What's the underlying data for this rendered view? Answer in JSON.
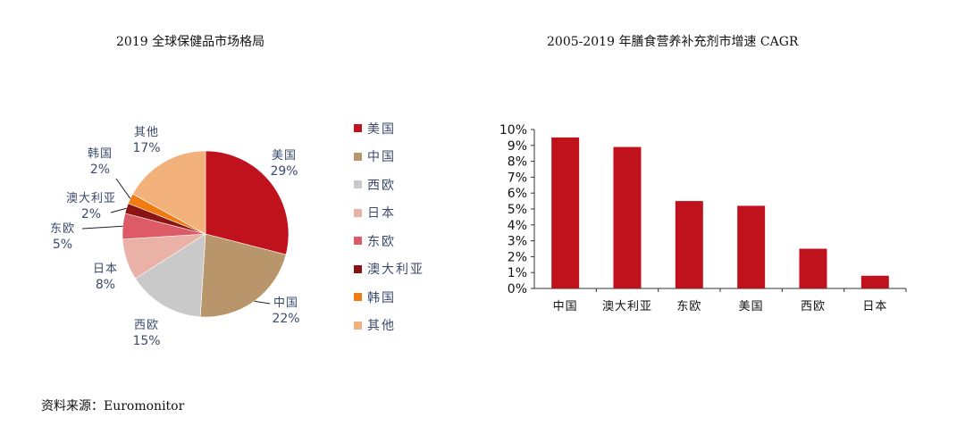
{
  "charts": {
    "pie_title": "2019 全球保健品市场格局",
    "bar_title": "2005-2019 年膳食营养补充剂市增速 CAGR"
  },
  "source_note": "资料来源：Euromonitor",
  "colors": {
    "red": "#c0121d",
    "tan": "#b8956a",
    "gray": "#c9c9c9",
    "pink": "#eab1a6",
    "rose": "#dc5b66",
    "darkred": "#8a1313",
    "orange": "#ef7b11",
    "peach": "#f2b07a",
    "label": "#3a4a6b"
  },
  "chart_data": [
    {
      "type": "pie",
      "title": "2019 全球保健品市场格局",
      "slices": [
        {
          "name": "美国",
          "value": 29,
          "label": "29%",
          "color": "#c0121d"
        },
        {
          "name": "中国",
          "value": 22,
          "label": "22%",
          "color": "#b8956a"
        },
        {
          "name": "西欧",
          "value": 15,
          "label": "15%",
          "color": "#c9c9c9"
        },
        {
          "name": "日本",
          "value": 8,
          "label": "8%",
          "color": "#eab1a6"
        },
        {
          "name": "东欧",
          "value": 5,
          "label": "5%",
          "color": "#dc5b66"
        },
        {
          "name": "澳大利亚",
          "value": 2,
          "label": "2%",
          "color": "#8a1313"
        },
        {
          "name": "韩国",
          "value": 2,
          "label": "2%",
          "color": "#ef7b11"
        },
        {
          "name": "其他",
          "value": 17,
          "label": "17%",
          "color": "#f2b07a"
        }
      ],
      "legend": [
        "美国",
        "中国",
        "西欧",
        "日本",
        "东欧",
        "澳大利亚",
        "韩国",
        "其他"
      ],
      "legend_position": "right"
    },
    {
      "type": "bar",
      "title": "2005-2019 年膳食营养补充剂市增速 CAGR",
      "categories": [
        "中国",
        "澳大利亚",
        "东欧",
        "美国",
        "西欧",
        "日本"
      ],
      "values": [
        9.5,
        8.9,
        5.5,
        5.2,
        2.5,
        0.8
      ],
      "ylim": [
        0,
        10
      ],
      "yticks": [
        "0%",
        "1%",
        "2%",
        "3%",
        "4%",
        "5%",
        "6%",
        "7%",
        "8%",
        "9%",
        "10%"
      ],
      "color": "#c0121d",
      "grid": false
    }
  ]
}
